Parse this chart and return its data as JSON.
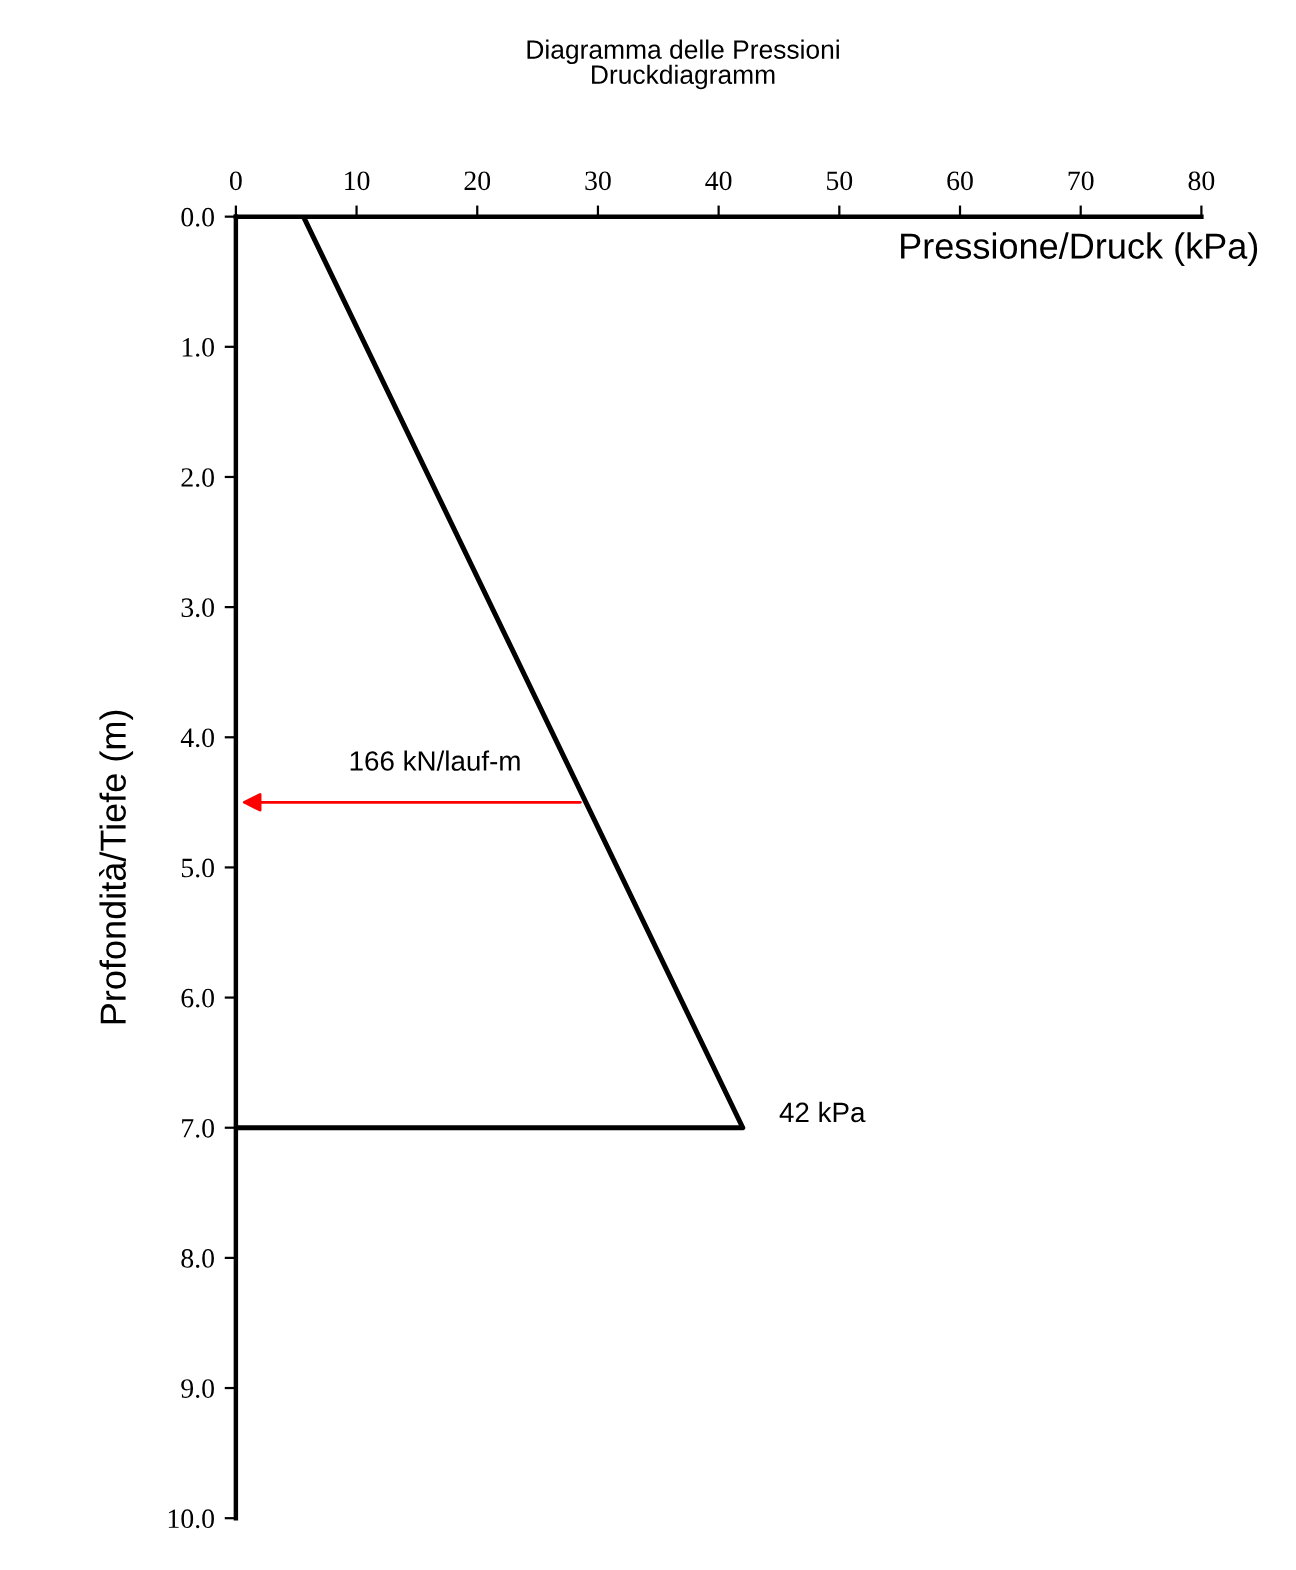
{
  "chart_data": {
    "type": "line",
    "title": "Diagramma delle Pressioni",
    "subtitle": "Druckdiagramm",
    "xlabel": "Pressione/Druck (kPa)",
    "ylabel": "Profondità/Tiefe (m)",
    "xlim": [
      0,
      80
    ],
    "xticks": [
      0,
      10,
      20,
      30,
      40,
      50,
      60,
      70,
      80
    ],
    "ylim": [
      10,
      0
    ],
    "yticks": [
      {
        "value": 0,
        "label": "0.0"
      },
      {
        "value": 1,
        "label": "1.0"
      },
      {
        "value": 2,
        "label": "2.0"
      },
      {
        "value": 3,
        "label": "3.0"
      },
      {
        "value": 4,
        "label": "4.0"
      },
      {
        "value": 5,
        "label": "5.0"
      },
      {
        "value": 6,
        "label": "6.0"
      },
      {
        "value": 7,
        "label": "7.0"
      },
      {
        "value": 8,
        "label": "8.0"
      },
      {
        "value": 9,
        "label": "9.0"
      },
      {
        "value": 10,
        "label": "10.0"
      }
    ],
    "series": [
      {
        "color": "#000000",
        "x": [
          5.6,
          42,
          0
        ],
        "values": [
          0,
          7,
          7
        ]
      }
    ],
    "annotations": [
      {
        "text": "166 kN/lauf-m",
        "x": 29,
        "y": 4.5
      },
      {
        "text": "42 kPa",
        "x": 42,
        "y": 7
      }
    ],
    "grid": false,
    "marker": "none",
    "line_style": "solid"
  }
}
